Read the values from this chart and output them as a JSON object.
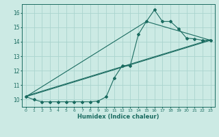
{
  "xlabel": "Humidex (Indice chaleur)",
  "bg_color": "#cceae4",
  "grid_color": "#aad4ce",
  "line_color": "#1a6b60",
  "xlim": [
    -0.5,
    23.5
  ],
  "ylim": [
    9.5,
    16.6
  ],
  "yticks": [
    10,
    11,
    12,
    13,
    14,
    15,
    16
  ],
  "xticks": [
    0,
    1,
    2,
    3,
    4,
    5,
    6,
    7,
    8,
    9,
    10,
    11,
    12,
    13,
    14,
    15,
    16,
    17,
    18,
    19,
    20,
    21,
    22,
    23
  ],
  "series1_x": [
    0,
    1,
    2,
    3,
    4,
    5,
    6,
    7,
    8,
    9,
    10,
    11,
    12,
    13,
    14,
    15,
    16,
    17,
    18,
    19,
    20,
    21,
    22,
    23
  ],
  "series1_y": [
    10.2,
    10.0,
    9.85,
    9.85,
    9.85,
    9.85,
    9.85,
    9.85,
    9.85,
    9.9,
    10.2,
    11.5,
    12.35,
    12.35,
    14.5,
    15.4,
    16.2,
    15.4,
    15.4,
    14.9,
    14.25,
    14.2,
    14.1,
    14.1
  ],
  "line2_x": [
    0,
    23
  ],
  "line2_y": [
    10.2,
    14.1
  ],
  "line3_x": [
    0,
    23
  ],
  "line3_y": [
    10.2,
    14.1
  ],
  "line4_x": [
    0,
    15,
    23
  ],
  "line4_y": [
    10.2,
    15.4,
    14.1
  ]
}
